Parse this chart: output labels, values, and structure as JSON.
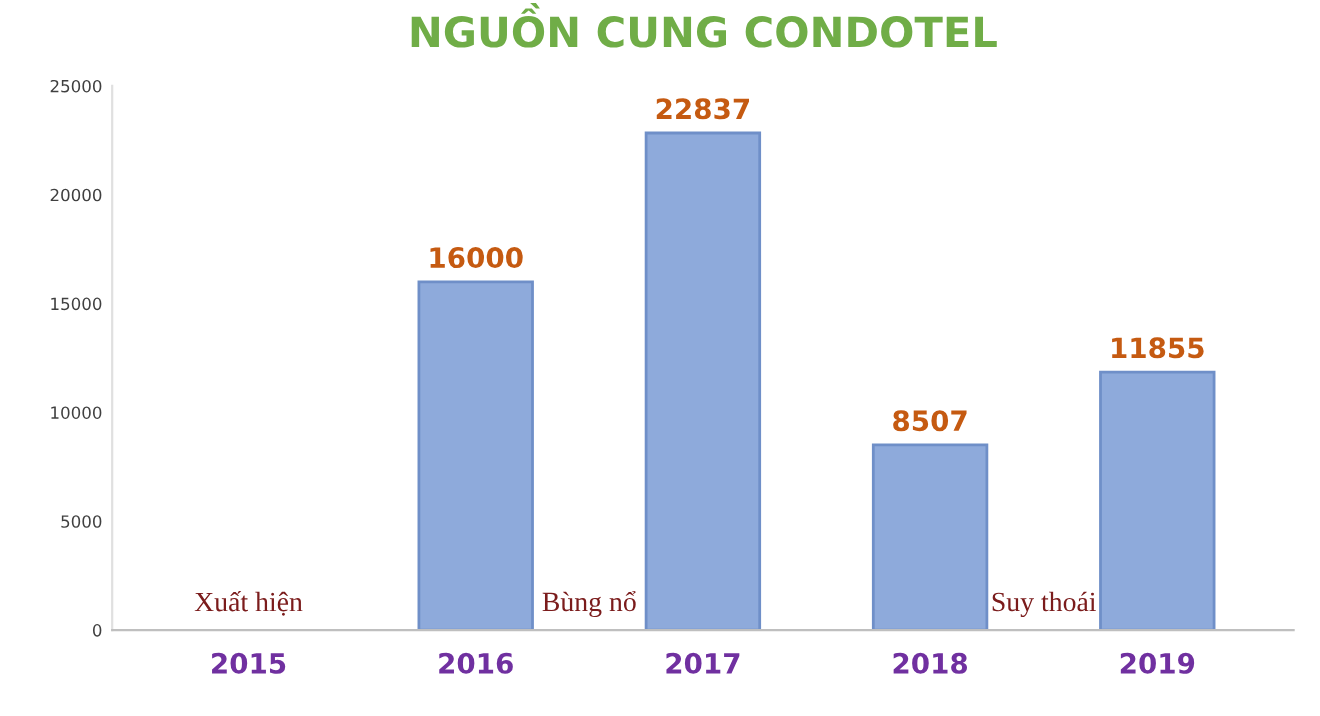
{
  "chart_data": {
    "type": "bar",
    "title": "NGUỒN CUNG CONDOTEL",
    "categories": [
      "2015",
      "2016",
      "2017",
      "2018",
      "2019"
    ],
    "values": [
      null,
      16000,
      22837,
      8507,
      11855
    ],
    "color": "#8eaadb",
    "ylim": [
      0,
      25000
    ],
    "yticks": [
      0,
      5000,
      10000,
      15000,
      20000,
      25000
    ],
    "grid": false,
    "data_labels": true,
    "annotations": [
      "Xuất hiện",
      "Bùng nổ",
      "Suy thoái"
    ]
  }
}
